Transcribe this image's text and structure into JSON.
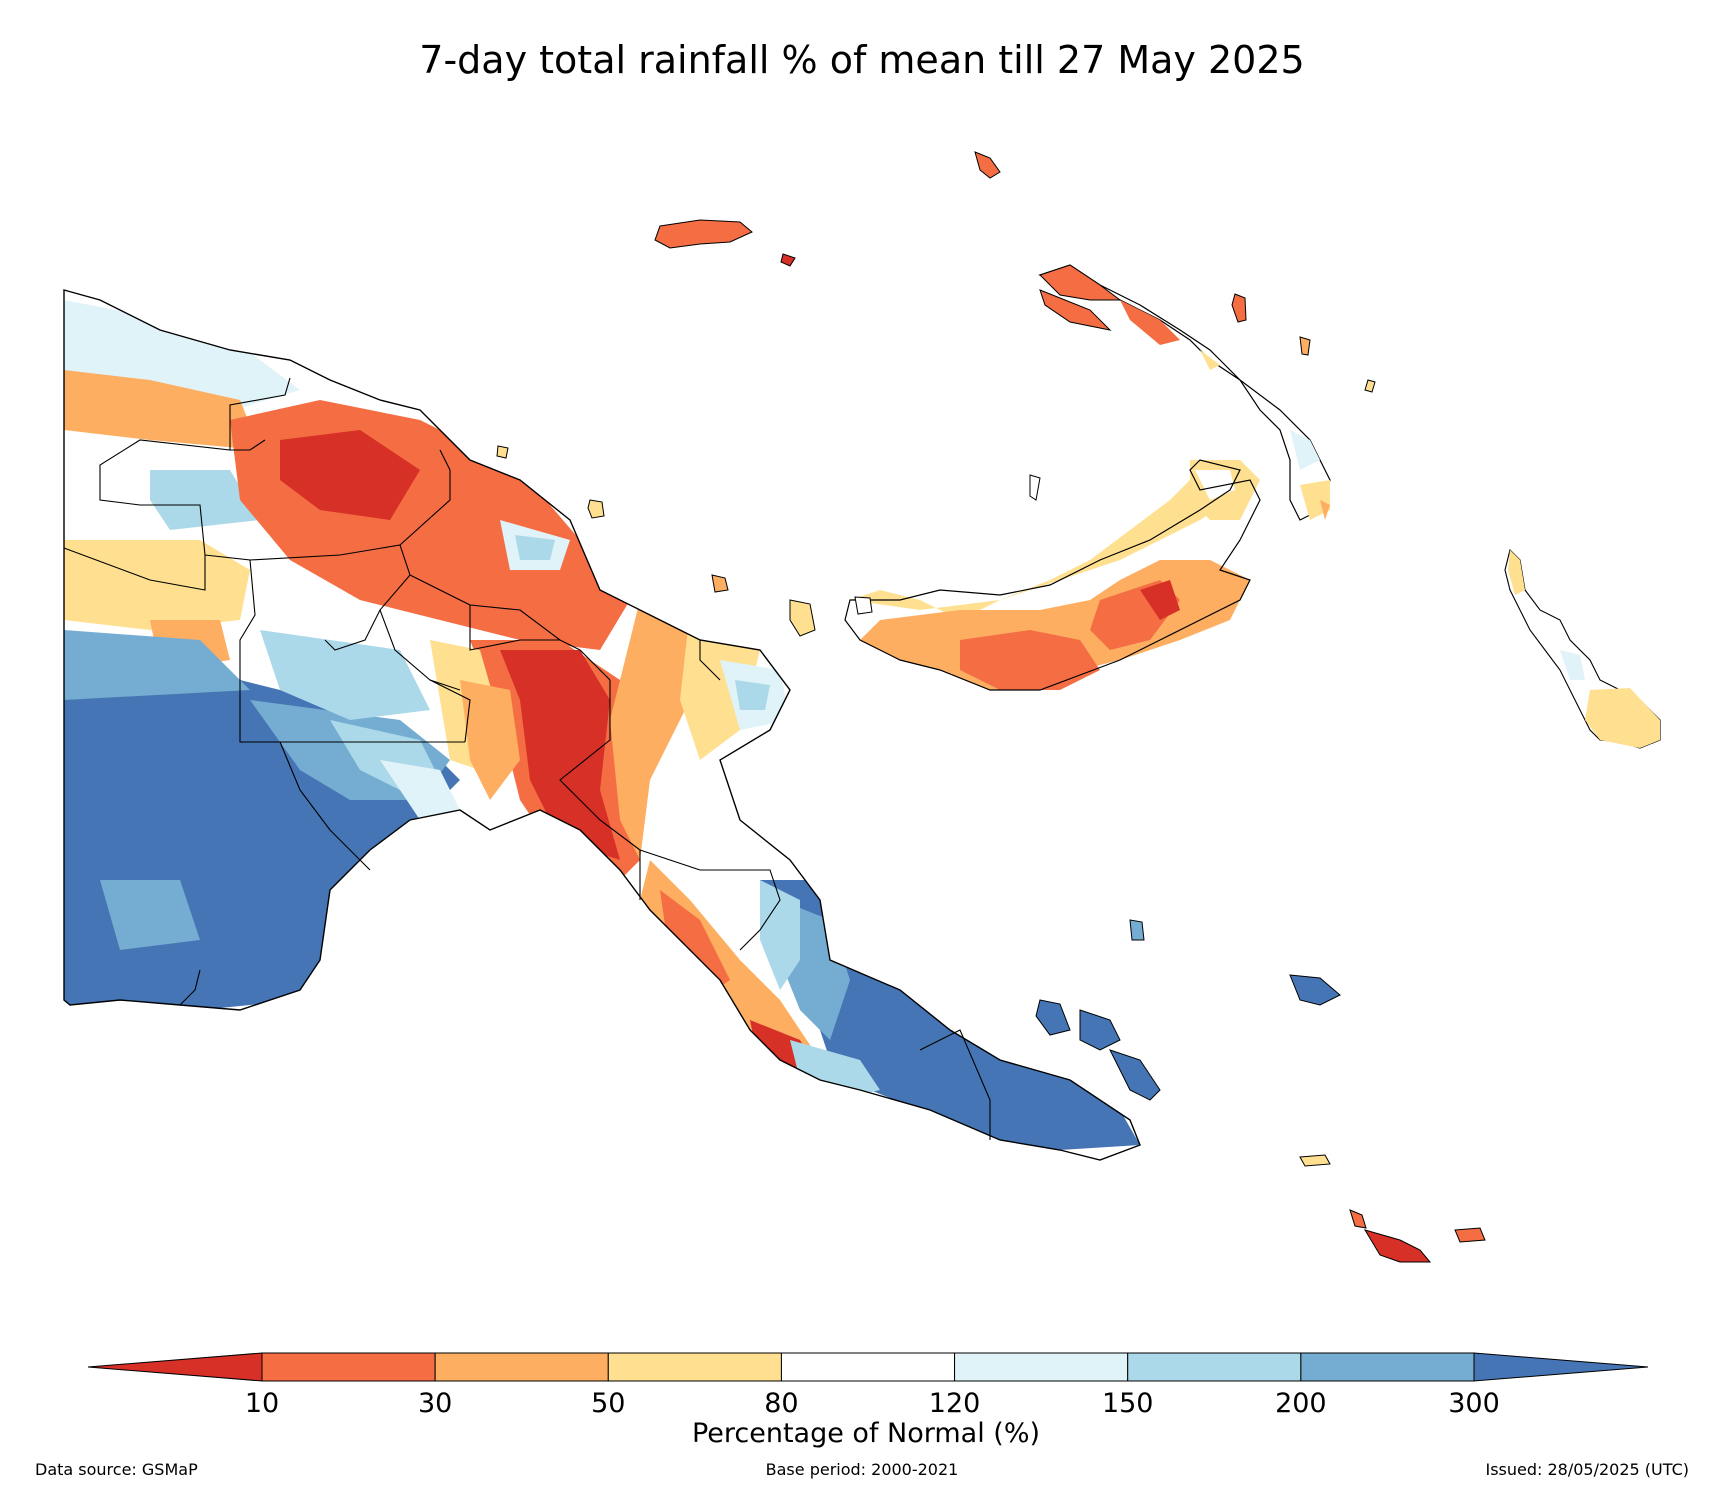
{
  "title": "7-day total rainfall % of mean till 27 May 2025",
  "legend": {
    "label": "Percentage of Normal (%)",
    "ticks": [
      "10",
      "30",
      "50",
      "80",
      "120",
      "150",
      "200",
      "300"
    ],
    "colors": {
      "lt10": "#d73027",
      "c10_30": "#f46d43",
      "c30_50": "#fdae61",
      "c50_80": "#fee090",
      "c80_120": "#ffffff",
      "c120_150": "#e0f3f8",
      "c150_200": "#abd9e9",
      "c200_300": "#74add1",
      "gt300": "#4575b4"
    }
  },
  "footer": {
    "source": "Data source: GSMaP",
    "base_period": "Base period: 2000-2021",
    "issued": "Issued: 28/05/2025 (UTC)"
  }
}
